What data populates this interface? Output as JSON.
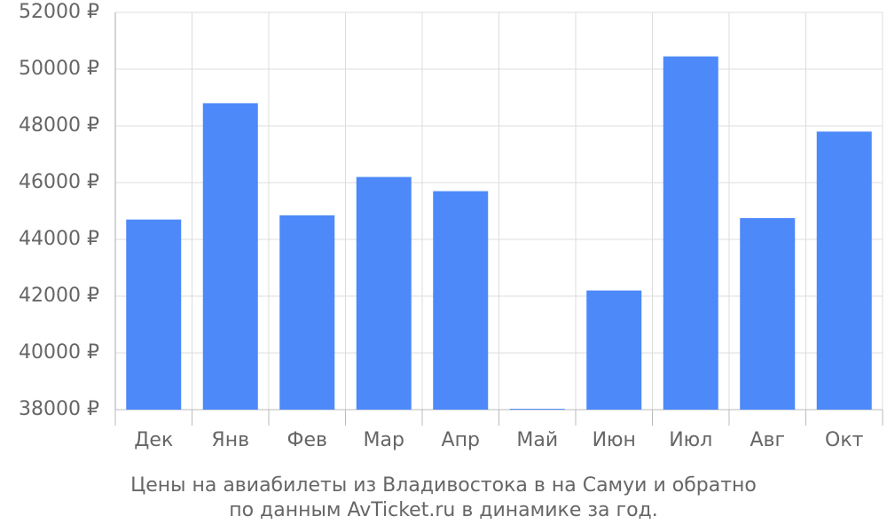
{
  "chart_data": {
    "type": "bar",
    "title": "Цены на авиабилеты из Владивостока в на Самуи и обратно",
    "subtitle": "по данным AvTicket.ru в динамике за год.",
    "categories": [
      "Дек",
      "Янв",
      "Фев",
      "Мар",
      "Апр",
      "Май",
      "Июн",
      "Июл",
      "Авг",
      "Окт"
    ],
    "values": [
      44700,
      48800,
      44850,
      46200,
      45700,
      38030,
      42200,
      50450,
      44750,
      47800
    ],
    "color": "#4d89f9",
    "ylim": [
      38000,
      52000
    ],
    "yticks": [
      {
        "value": 38000,
        "label": "38000 ₽"
      },
      {
        "value": 40000,
        "label": "40000 ₽"
      },
      {
        "value": 42000,
        "label": "42000 ₽"
      },
      {
        "value": 44000,
        "label": "44000 ₽"
      },
      {
        "value": 46000,
        "label": "46000 ₽"
      },
      {
        "value": 48000,
        "label": "48000 ₽"
      },
      {
        "value": 50000,
        "label": "50000 ₽"
      },
      {
        "value": 52000,
        "label": "52000 ₽"
      }
    ],
    "grid": true
  }
}
